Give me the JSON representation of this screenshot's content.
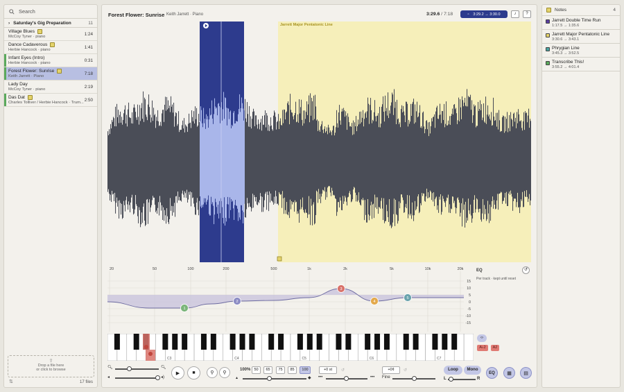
{
  "sidebar": {
    "search_placeholder": "Search",
    "group": {
      "label": "Saturday's Gig Preparation",
      "count": "11"
    },
    "tracks": [
      {
        "title": "Village Blues",
        "artist": "McCoy Tyner · piano",
        "duration": "1:24",
        "has_note": true,
        "marker": ""
      },
      {
        "title": "Dance Cadaverous",
        "artist": "Herbie Hancock · piano",
        "duration": "1:41",
        "has_note": true,
        "marker": ""
      },
      {
        "title": "Infant Eyes (Intro)",
        "artist": "Herbie Hancock · piano",
        "duration": "0:31",
        "has_note": false,
        "marker": "#5aa95c"
      },
      {
        "title": "Forest Flower: Sunrise",
        "artist": "Keith Jarrett · Piano",
        "duration": "7:18",
        "has_note": true,
        "marker": "#5aa95c",
        "selected": true
      },
      {
        "title": "Lady Day",
        "artist": "McCoy Tyner · piano",
        "duration": "2:19",
        "has_note": false,
        "marker": ""
      },
      {
        "title": "Das Dat",
        "artist": "Charles Tolliver / Herbie Hancock · Trum...",
        "duration": "2:50",
        "has_note": true,
        "marker": "#5aa95c"
      }
    ],
    "drop_line1": "Drop a file here",
    "drop_line2": "or click to browse",
    "file_count": "17 files"
  },
  "header": {
    "title": "Forest Flower: Sunrise",
    "subtitle": "Keith Jarrett · Piano",
    "position": "3:29.6",
    "duration": "/ 7:18",
    "selection": "3:29.2 → 3:30.0",
    "btn_a": "♪",
    "btn_b": "?"
  },
  "waveform": {
    "region_label": "Jarrett Major Pentatonic Line",
    "colors": {
      "wave": "#4a4d57",
      "selection": "#2d3b8d",
      "selection_wave": "#a9b6ea",
      "region": "#f6efba"
    }
  },
  "eq": {
    "label": "EQ",
    "sublabel": "Per track · kept until reset",
    "freq_labels": [
      "20",
      "50",
      "100",
      "200",
      "500",
      "1k",
      "2k",
      "5k",
      "10k",
      "20k"
    ],
    "db_labels": [
      "15",
      "10",
      "5",
      "0",
      "-5",
      "-10",
      "-15"
    ],
    "bands": [
      {
        "id": "1",
        "color": "#7ab57a"
      },
      {
        "id": "2",
        "color": "#8c8cc4"
      },
      {
        "id": "3",
        "color": "#d9726a"
      },
      {
        "id": "4",
        "color": "#e3a94b"
      },
      {
        "id": "5",
        "color": "#6aa3ad"
      }
    ]
  },
  "piano": {
    "octave_labels": [
      "C3",
      "C4",
      "C5",
      "C6",
      "C7"
    ],
    "transpose_icon": "‹›",
    "chip1": "A♭2",
    "chip2": "A2"
  },
  "transport": {
    "speed": "100%",
    "speed_presets": [
      "50",
      "65",
      "75",
      "85",
      "100"
    ],
    "semitones": "+0 st",
    "cents": "+0¢",
    "fine_label": "Fine",
    "loop": "Loop",
    "mono": "Mono",
    "eq_btn": "EQ",
    "pan_left": "L",
    "pan_right": "R"
  },
  "notes": {
    "header": "Notes",
    "count": "4",
    "items": [
      {
        "name": "Jarrett Double Time Run",
        "range": "1:17.5 → 1:35.6",
        "color": "#5a3fa0"
      },
      {
        "name": "Jarrett Major Pentatonic Line",
        "range": "3:30.6 → 3:43.1",
        "color": "#e4d36b"
      },
      {
        "name": "Phrygian Line",
        "range": "3:45.3 → 3:52.5",
        "color": "#4aa3a0"
      },
      {
        "name": "Transcribe This!",
        "range": "3:55.2 → 4:01.4",
        "color": "#5aa95c"
      }
    ]
  }
}
